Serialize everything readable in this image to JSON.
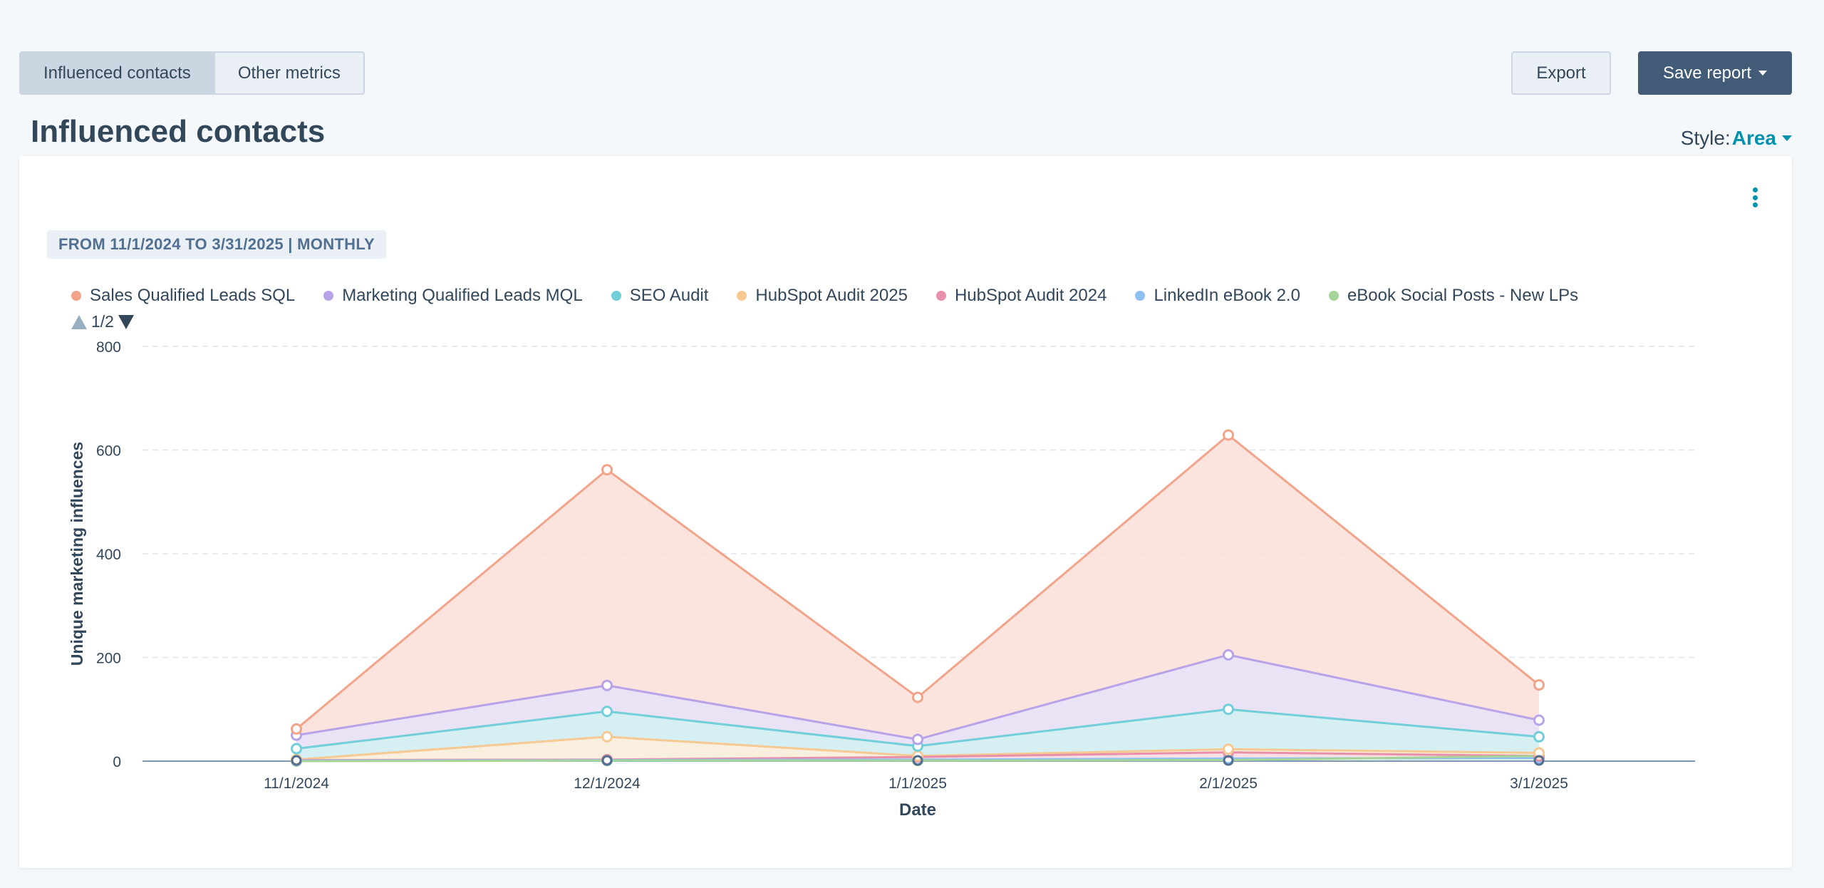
{
  "tabs": [
    {
      "label": "Influenced contacts",
      "active": true
    },
    {
      "label": "Other metrics",
      "active": false
    }
  ],
  "toolbar": {
    "export_label": "Export",
    "save_label": "Save report"
  },
  "page_title": "Influenced contacts",
  "style_selector": {
    "label": "Style:",
    "value": "Area"
  },
  "card": {
    "date_range": "FROM 11/1/2024 TO 3/31/2025 | MONTHLY",
    "legend_page": "1/2"
  },
  "colors": {
    "accent": "#0091ae",
    "primary_button": "#425b76",
    "axis_baseline": "#7c98b6",
    "grid": "#dfe3eb"
  },
  "chart_data": {
    "type": "area",
    "xlabel": "Date",
    "ylabel": "Unique marketing influences",
    "categories": [
      "11/1/2024",
      "12/1/2024",
      "1/1/2025",
      "2/1/2025",
      "3/1/2025"
    ],
    "ylim": [
      0,
      800
    ],
    "yticks": [
      "0",
      "200",
      "400",
      "600",
      "800"
    ],
    "grid": true,
    "legend_position": "top-left",
    "series": [
      {
        "name": "Sales Qualified Leads SQL",
        "color": "#f2a48a",
        "fill": "#fbe1d9",
        "values": [
          62,
          562,
          123,
          629,
          147
        ]
      },
      {
        "name": "Marketing Qualified Leads MQL",
        "color": "#b9a3e8",
        "fill": "#e8e2f7",
        "values": [
          50,
          146,
          42,
          205,
          79
        ]
      },
      {
        "name": "SEO Audit",
        "color": "#72cfd9",
        "fill": "#d3f0f3",
        "values": [
          24,
          96,
          29,
          100,
          47
        ]
      },
      {
        "name": "HubSpot Audit 2025",
        "color": "#f7c992",
        "fill": "#fdeedd",
        "values": [
          3,
          47,
          10,
          23,
          16
        ]
      },
      {
        "name": "HubSpot Audit 2024",
        "color": "#e88fa9",
        "fill": "#f9dde5",
        "values": [
          2,
          3,
          8,
          17,
          10
        ]
      },
      {
        "name": "LinkedIn eBook 2.0",
        "color": "#8ec0f1",
        "fill": "#dfeefc",
        "values": [
          1,
          2,
          3,
          5,
          6
        ]
      },
      {
        "name": "eBook Social Posts - New LPs",
        "color": "#a6d59a",
        "fill": "#e6f3e2",
        "values": [
          0,
          1,
          1,
          2,
          10
        ]
      }
    ]
  }
}
